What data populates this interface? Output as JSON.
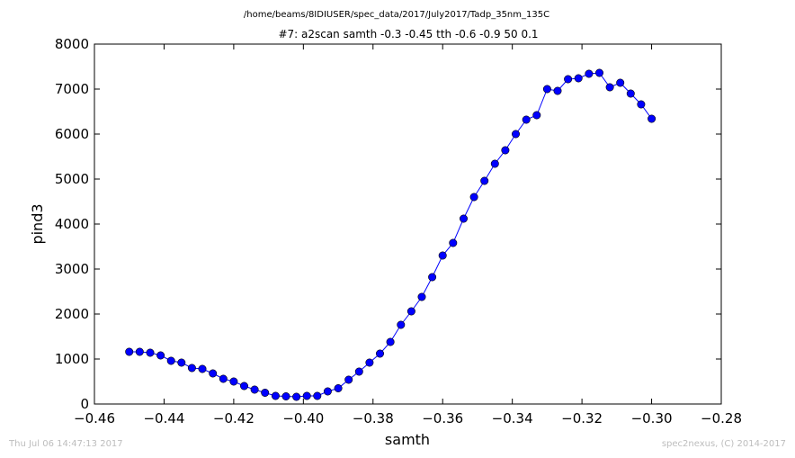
{
  "chart_data": {
    "type": "line",
    "title": "#7: a2scan  samth -0.3 -0.45  tth -0.6 -0.9  50 0.1",
    "suptitle": "/home/beams/8IDIUSER/spec_data/2017/July2017/Tadp_35nm_135C",
    "xlabel": "samth",
    "ylabel": "pind3",
    "xlim": [
      -0.46,
      -0.28
    ],
    "ylim": [
      0,
      8000
    ],
    "xticks": [
      -0.46,
      -0.44,
      -0.42,
      -0.4,
      -0.38,
      -0.36,
      -0.34,
      -0.32,
      -0.3,
      -0.28
    ],
    "yticks": [
      0,
      1000,
      2000,
      3000,
      4000,
      5000,
      6000,
      7000,
      8000
    ],
    "xtick_labels": [
      "−0.46",
      "−0.44",
      "−0.42",
      "−0.40",
      "−0.38",
      "−0.36",
      "−0.34",
      "−0.32",
      "−0.30",
      "−0.28"
    ],
    "ytick_labels": [
      "0",
      "1000",
      "2000",
      "3000",
      "4000",
      "5000",
      "6000",
      "7000",
      "8000"
    ],
    "grid": false,
    "line_color": "#0000ff",
    "marker_color": "#0000ff",
    "x": [
      -0.45,
      -0.447,
      -0.444,
      -0.441,
      -0.438,
      -0.435,
      -0.432,
      -0.429,
      -0.426,
      -0.423,
      -0.42,
      -0.417,
      -0.414,
      -0.411,
      -0.408,
      -0.405,
      -0.402,
      -0.399,
      -0.396,
      -0.393,
      -0.39,
      -0.387,
      -0.384,
      -0.381,
      -0.378,
      -0.375,
      -0.372,
      -0.369,
      -0.366,
      -0.363,
      -0.36,
      -0.357,
      -0.354,
      -0.351,
      -0.348,
      -0.345,
      -0.342,
      -0.339,
      -0.336,
      -0.333,
      -0.33,
      -0.327,
      -0.324,
      -0.321,
      -0.318,
      -0.315,
      -0.312,
      -0.309,
      -0.306,
      -0.303,
      -0.3
    ],
    "y": [
      1160,
      1160,
      1140,
      1080,
      960,
      920,
      800,
      780,
      680,
      560,
      500,
      400,
      320,
      250,
      180,
      170,
      160,
      180,
      180,
      280,
      350,
      540,
      720,
      920,
      1120,
      1380,
      1760,
      2060,
      2380,
      2820,
      3300,
      3580,
      4120,
      4600,
      4960,
      5340,
      5640,
      6000,
      6320,
      6420,
      7000,
      6960,
      7220,
      7240,
      7340,
      7360,
      7040,
      7140,
      6900,
      6660,
      6340
    ]
  },
  "footer": {
    "timestamp": "Thu Jul 06 14:47:13 2017",
    "credit": "spec2nexus, (C) 2014-2017"
  }
}
